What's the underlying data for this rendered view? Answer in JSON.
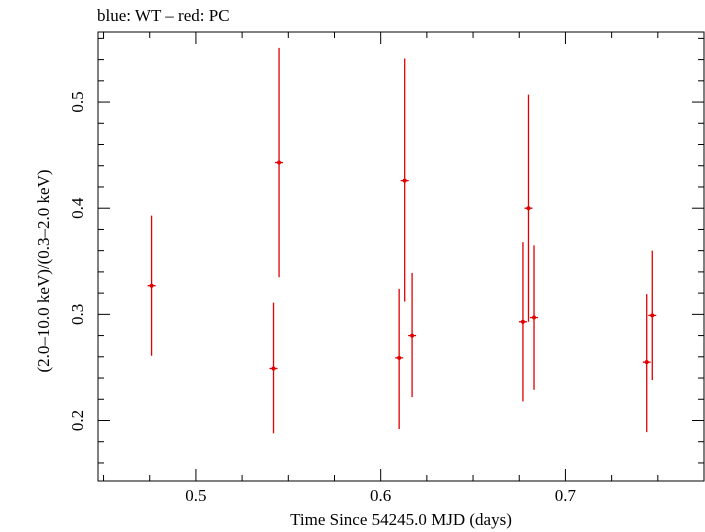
{
  "chart_data": {
    "type": "scatter",
    "title": "blue: WT – red: PC",
    "xlabel": "Time Since 54245.0 MJD (days)",
    "ylabel": "(2.0–10.0 keV)/(0.3–2.0 keV)",
    "xlim": [
      0.447,
      0.775
    ],
    "ylim": [
      0.143,
      0.566
    ],
    "xticks": [
      0.5,
      0.6,
      0.7
    ],
    "xtick_labels": [
      "0.5",
      "0.6",
      "0.7"
    ],
    "yticks": [
      0.2,
      0.3,
      0.4,
      0.5
    ],
    "ytick_labels": [
      "0.2",
      "0.3",
      "0.4",
      "0.5"
    ],
    "grid": false,
    "series": [
      {
        "color": "#e00000",
        "points": [
          {
            "x": 0.476,
            "y": 0.327,
            "ylow": 0.261,
            "yhigh": 0.393
          },
          {
            "x": 0.542,
            "y": 0.249,
            "ylow": 0.188,
            "yhigh": 0.311
          },
          {
            "x": 0.545,
            "y": 0.443,
            "ylow": 0.335,
            "yhigh": 0.551
          },
          {
            "x": 0.61,
            "y": 0.259,
            "ylow": 0.192,
            "yhigh": 0.324
          },
          {
            "x": 0.613,
            "y": 0.426,
            "ylow": 0.312,
            "yhigh": 0.541
          },
          {
            "x": 0.617,
            "y": 0.28,
            "ylow": 0.222,
            "yhigh": 0.339
          },
          {
            "x": 0.677,
            "y": 0.293,
            "ylow": 0.218,
            "yhigh": 0.368
          },
          {
            "x": 0.68,
            "y": 0.4,
            "ylow": 0.293,
            "yhigh": 0.507
          },
          {
            "x": 0.683,
            "y": 0.297,
            "ylow": 0.229,
            "yhigh": 0.365
          },
          {
            "x": 0.744,
            "y": 0.255,
            "ylow": 0.189,
            "yhigh": 0.319
          },
          {
            "x": 0.747,
            "y": 0.299,
            "ylow": 0.238,
            "yhigh": 0.36
          }
        ]
      }
    ]
  }
}
